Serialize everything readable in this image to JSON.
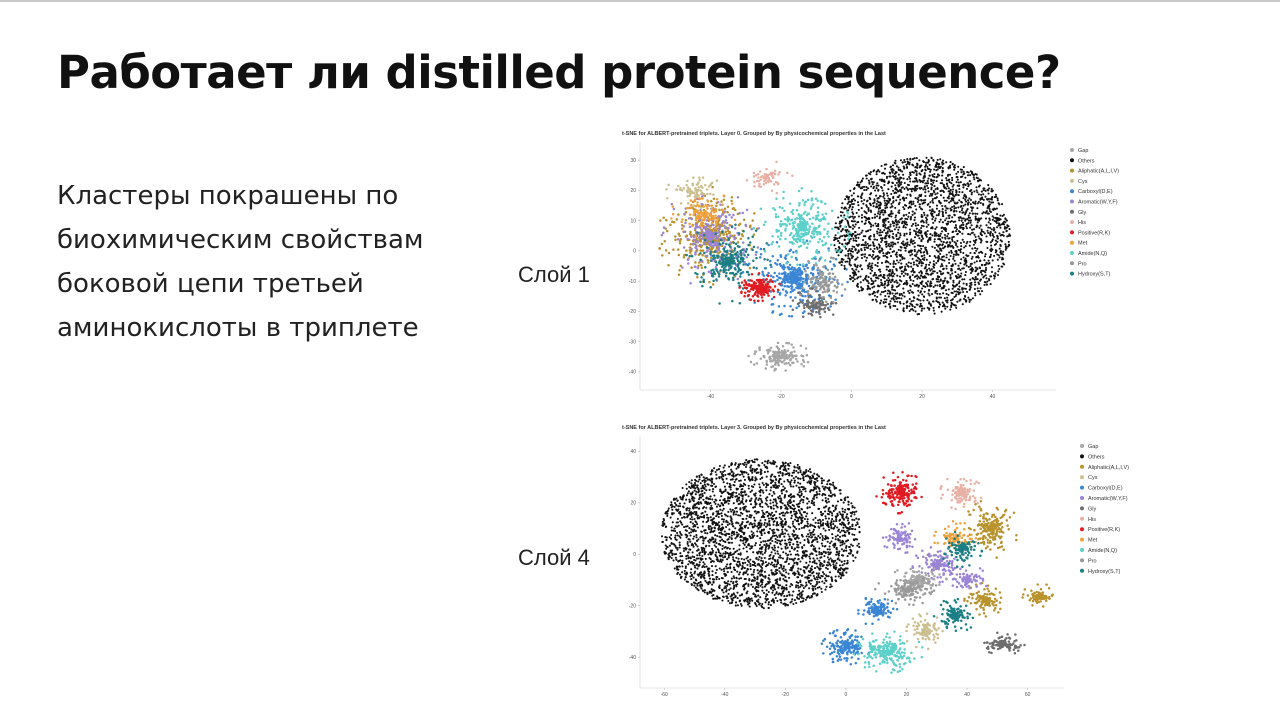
{
  "slide": {
    "title": "Работает ли distilled protein sequence?",
    "body_lines": [
      "Кластеры покрашены по",
      "биохимическим свойствам",
      "боковой цепи третьей",
      "аминокислоты в триплете"
    ],
    "layer_labels": [
      "Слой 1",
      "Слой 4"
    ]
  },
  "colors": {
    "Gap": "#a6a6a6",
    "Others": "#111111",
    "Aliphatic(A,L,I,V)": "#b8922c",
    "Cys": "#ccbf8f",
    "Carboxyl(D,E)": "#3a86d4",
    "Aromatic(W,Y,F)": "#9b84d6",
    "Gly": "#6e6e6e",
    "His": "#e8b1a6",
    "Positive(R,K)": "#e11b22",
    "Met": "#f2a13a",
    "Amide(N,Q)": "#5cd0c9",
    "Pro": "#999999",
    "Hydroxy(S,T)": "#1b7f85"
  },
  "chart_data": [
    {
      "type": "scatter",
      "title": "t-SNE for ALBERT-pretrained triplets. Layer 0. Grouped by By physicochemical properties in the Last",
      "x_ticks": [
        -40,
        -20,
        0,
        20,
        40
      ],
      "y_ticks": [
        30,
        20,
        10,
        0,
        -10,
        -20,
        -30,
        -40
      ],
      "xlim": [
        -60,
        58
      ],
      "ylim": [
        -46,
        36
      ],
      "legend_position": "top-right",
      "legend": [
        "Gap",
        "Others",
        "Aliphatic(A,L,I,V)",
        "Cys",
        "Carboxyl(D,E)",
        "Aromatic(W,Y,F)",
        "Gly",
        "His",
        "Positive(R,K)",
        "Met",
        "Amide(N,Q)",
        "Pro",
        "Hydroxy(S,T)"
      ],
      "clusters": [
        {
          "name": "Others",
          "cx": 20,
          "cy": 5,
          "rx": 25,
          "ry": 26,
          "n": 2600
        },
        {
          "name": "Aliphatic(A,L,I,V)",
          "cx": -40,
          "cy": 5,
          "rx": 13,
          "ry": 14,
          "n": 420
        },
        {
          "name": "Aromatic(W,Y,F)",
          "cx": -40,
          "cy": 5,
          "rx": 12,
          "ry": 15,
          "n": 260
        },
        {
          "name": "Hydroxy(S,T)",
          "cx": -35,
          "cy": -4,
          "rx": 11,
          "ry": 12,
          "n": 260
        },
        {
          "name": "Carboxyl(D,E)",
          "cx": -16,
          "cy": -9,
          "rx": 13,
          "ry": 11,
          "n": 380
        },
        {
          "name": "Amide(N,Q)",
          "cx": -14,
          "cy": 8,
          "rx": 12,
          "ry": 11,
          "n": 320
        },
        {
          "name": "Positive(R,K)",
          "cx": -26,
          "cy": -12,
          "rx": 5,
          "ry": 4,
          "n": 200
        },
        {
          "name": "Gap",
          "cx": -20,
          "cy": -35,
          "rx": 8,
          "ry": 4,
          "n": 170
        },
        {
          "name": "Gly",
          "cx": -10,
          "cy": -18,
          "rx": 6,
          "ry": 5,
          "n": 120
        },
        {
          "name": "Cys",
          "cx": -44,
          "cy": 20,
          "rx": 8,
          "ry": 5,
          "n": 80
        },
        {
          "name": "His",
          "cx": -24,
          "cy": 24,
          "rx": 7,
          "ry": 5,
          "n": 70
        },
        {
          "name": "Met",
          "cx": -42,
          "cy": 12,
          "rx": 8,
          "ry": 7,
          "n": 110
        },
        {
          "name": "Pro",
          "cx": -8,
          "cy": -10,
          "rx": 7,
          "ry": 7,
          "n": 110
        }
      ]
    },
    {
      "type": "scatter",
      "title": "t-SNE for ALBERT-pretrained triplets. Layer 3. Grouped by By physicochemical properties in the Last",
      "x_ticks": [
        -60,
        -40,
        -20,
        0,
        20,
        40,
        60
      ],
      "y_ticks": [
        40,
        20,
        0,
        -20,
        -40
      ],
      "xlim": [
        -68,
        72
      ],
      "ylim": [
        -52,
        46
      ],
      "legend_position": "top-right",
      "legend": [
        "Gap",
        "Others",
        "Aliphatic(A,L,I,V)",
        "Cys",
        "Carboxyl(D,E)",
        "Aromatic(W,Y,F)",
        "Gly",
        "His",
        "Positive(R,K)",
        "Met",
        "Amide(N,Q)",
        "Pro",
        "Hydroxy(S,T)"
      ],
      "clusters": [
        {
          "name": "Others",
          "cx": -28,
          "cy": 8,
          "rx": 33,
          "ry": 29,
          "n": 3000
        },
        {
          "name": "Positive(R,K)",
          "cx": 18,
          "cy": 24,
          "rx": 7,
          "ry": 7,
          "n": 200
        },
        {
          "name": "His",
          "cx": 38,
          "cy": 24,
          "rx": 6,
          "ry": 6,
          "n": 120
        },
        {
          "name": "Aliphatic(A,L,I,V)",
          "cx": 48,
          "cy": 10,
          "rx": 8,
          "ry": 10,
          "n": 220
        },
        {
          "name": "Aliphatic(A,L,I,V)",
          "cx": 46,
          "cy": -18,
          "rx": 6,
          "ry": 6,
          "n": 120
        },
        {
          "name": "Aliphatic(A,L,I,V)",
          "cx": 64,
          "cy": -16,
          "rx": 5,
          "ry": 4,
          "n": 80
        },
        {
          "name": "Aromatic(W,Y,F)",
          "cx": 18,
          "cy": 6,
          "rx": 5,
          "ry": 6,
          "n": 100
        },
        {
          "name": "Aromatic(W,Y,F)",
          "cx": 30,
          "cy": -4,
          "rx": 7,
          "ry": 6,
          "n": 140
        },
        {
          "name": "Aromatic(W,Y,F)",
          "cx": 40,
          "cy": -10,
          "rx": 6,
          "ry": 5,
          "n": 90
        },
        {
          "name": "Met",
          "cx": 36,
          "cy": 6,
          "rx": 6,
          "ry": 6,
          "n": 110
        },
        {
          "name": "Hydroxy(S,T)",
          "cx": 38,
          "cy": 2,
          "rx": 6,
          "ry": 6,
          "n": 120
        },
        {
          "name": "Hydroxy(S,T)",
          "cx": 36,
          "cy": -24,
          "rx": 6,
          "ry": 6,
          "n": 120
        },
        {
          "name": "Gap",
          "cx": 24,
          "cy": -10,
          "rx": 8,
          "ry": 5,
          "n": 130
        },
        {
          "name": "Pro",
          "cx": 20,
          "cy": -14,
          "rx": 9,
          "ry": 5,
          "n": 140
        },
        {
          "name": "Carboxyl(D,E)",
          "cx": 10,
          "cy": -22,
          "rx": 6,
          "ry": 5,
          "n": 140
        },
        {
          "name": "Carboxyl(D,E)",
          "cx": 0,
          "cy": -36,
          "rx": 7,
          "ry": 6,
          "n": 180
        },
        {
          "name": "Amide(N,Q)",
          "cx": 14,
          "cy": -38,
          "rx": 10,
          "ry": 7,
          "n": 240
        },
        {
          "name": "Cys",
          "cx": 26,
          "cy": -30,
          "rx": 6,
          "ry": 6,
          "n": 120
        },
        {
          "name": "Gly",
          "cx": 52,
          "cy": -35,
          "rx": 7,
          "ry": 4,
          "n": 120
        }
      ]
    }
  ]
}
